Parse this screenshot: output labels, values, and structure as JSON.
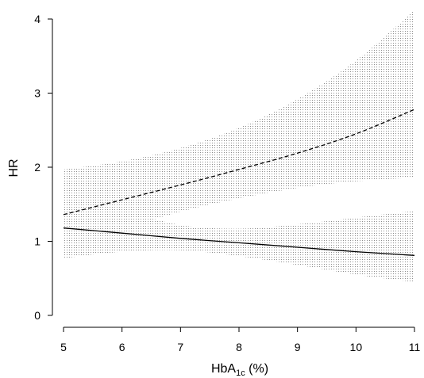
{
  "chart_data": {
    "type": "line",
    "title": "",
    "xlabel": {
      "main": "HbA",
      "sub": "1c",
      "unit": " (%)"
    },
    "ylabel": "HR",
    "xlim": [
      5,
      11
    ],
    "ylim": [
      0,
      4
    ],
    "x_ticks": [
      "5",
      "6",
      "7",
      "8",
      "9",
      "10",
      "11"
    ],
    "y_ticks": [
      "0",
      "1",
      "2",
      "3",
      "4"
    ],
    "grid": false,
    "band_color": "#8c8c8c",
    "series": [
      {
        "style": "dashed",
        "x": [
          5,
          6,
          7,
          8,
          9,
          10,
          11
        ],
        "y": [
          1.36,
          1.56,
          1.76,
          1.97,
          2.19,
          2.45,
          2.78
        ],
        "lower": [
          0.88,
          1.16,
          1.4,
          1.58,
          1.72,
          1.81,
          1.86
        ],
        "upper": [
          1.97,
          2.08,
          2.26,
          2.53,
          2.92,
          3.44,
          4.12
        ]
      },
      {
        "style": "solid",
        "x": [
          5,
          6,
          7,
          8,
          9,
          10,
          11
        ],
        "y": [
          1.18,
          1.11,
          1.04,
          0.98,
          0.92,
          0.86,
          0.81
        ],
        "lower": [
          0.77,
          0.86,
          0.88,
          0.8,
          0.68,
          0.55,
          0.45
        ],
        "upper": [
          1.7,
          1.43,
          1.22,
          1.17,
          1.23,
          1.32,
          1.41
        ]
      }
    ]
  }
}
